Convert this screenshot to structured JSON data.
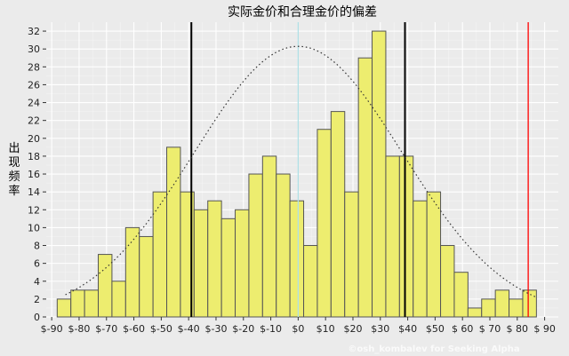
{
  "chart_data": {
    "type": "bar",
    "title": "实际金价和合理金价的偏差",
    "ylabel": "出现频率",
    "xlabel": "",
    "ylim": [
      0,
      33
    ],
    "xlim": [
      -92,
      95
    ],
    "grid": true,
    "y_ticks": [
      0,
      2,
      4,
      6,
      8,
      10,
      12,
      14,
      16,
      18,
      20,
      22,
      24,
      26,
      28,
      30,
      32
    ],
    "x_ticks": [
      {
        "value": -90,
        "label": "$-90"
      },
      {
        "value": -80,
        "label": "$-80"
      },
      {
        "value": -70,
        "label": "$-70"
      },
      {
        "value": -60,
        "label": "$-60"
      },
      {
        "value": -50,
        "label": "$-50"
      },
      {
        "value": -40,
        "label": "$-40"
      },
      {
        "value": -30,
        "label": "$-30"
      },
      {
        "value": -20,
        "label": "$-20"
      },
      {
        "value": -10,
        "label": "$-10"
      },
      {
        "value": 0,
        "label": "$0"
      },
      {
        "value": 10,
        "label": "$10"
      },
      {
        "value": 20,
        "label": "$20"
      },
      {
        "value": 30,
        "label": "$30"
      },
      {
        "value": 40,
        "label": "$40"
      },
      {
        "value": 50,
        "label": "$50"
      },
      {
        "value": 60,
        "label": "$ 60"
      },
      {
        "value": 70,
        "label": "$ 70"
      },
      {
        "value": 80,
        "label": "$ 80"
      },
      {
        "value": 90,
        "label": "$ 90"
      }
    ],
    "bin_width": 5,
    "bins_start": [
      -88,
      -83,
      -78,
      -73,
      -68,
      -63,
      -58,
      -53,
      -48,
      -43,
      -38,
      -33,
      -28,
      -23,
      -18,
      -13,
      -8,
      -3,
      2,
      7,
      12,
      17,
      22,
      27,
      32,
      37,
      42,
      47,
      52,
      57,
      62,
      67,
      72,
      77,
      82
    ],
    "values": [
      2,
      3,
      3,
      7,
      4,
      10,
      9,
      14,
      19,
      14,
      12,
      13,
      11,
      12,
      16,
      18,
      16,
      13,
      8,
      21,
      23,
      14,
      29,
      32,
      18,
      18,
      13,
      14,
      8,
      5,
      1,
      2,
      3,
      2,
      3
    ],
    "normal_curve": {
      "mean": 0,
      "sd": 38,
      "peak": 30.3,
      "style": "dotted"
    },
    "reference_lines": [
      {
        "x": -39,
        "color": "#000000"
      },
      {
        "x": 39,
        "color": "#000000"
      },
      {
        "x": 84,
        "color": "#ff0000"
      },
      {
        "x": 0,
        "color": "#b0e0e6"
      }
    ],
    "bar_fill": "#eded6f",
    "bar_stroke": "#555555",
    "watermark": "©osh_kombalev for Seeking Alpha"
  }
}
